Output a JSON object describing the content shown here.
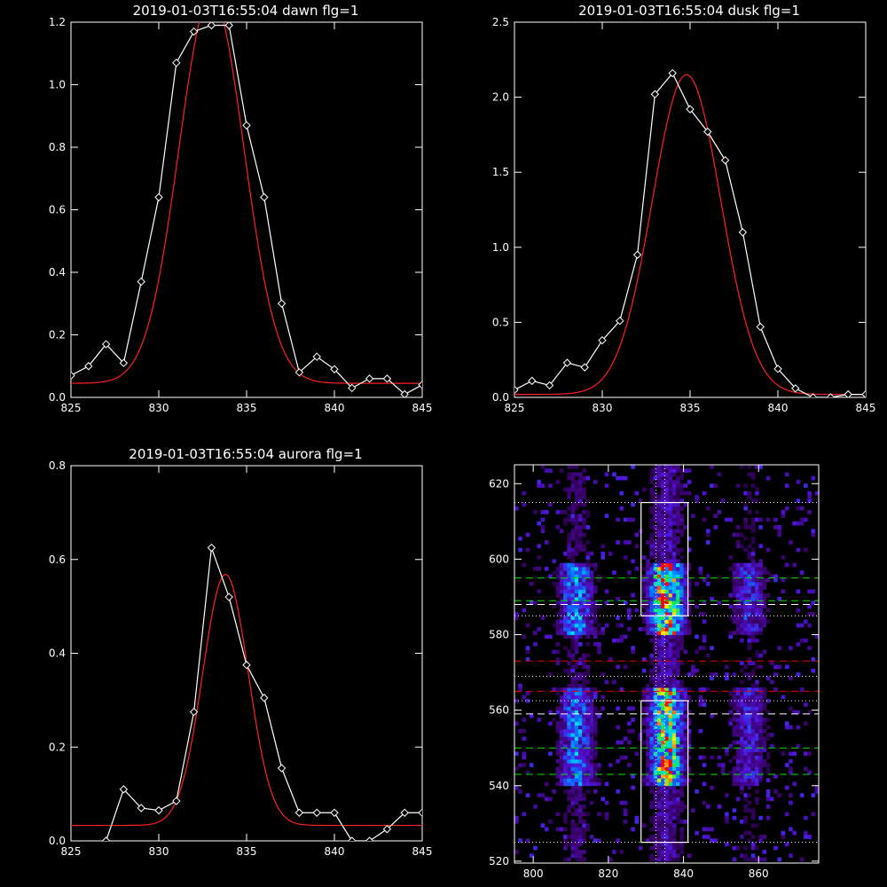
{
  "colors": {
    "background": "#000000",
    "axes": "#ffffff",
    "data_line": "#ffffff",
    "fit_line": "#ff2020",
    "guide_green": "#00e000",
    "guide_red": "#e00000",
    "guide_white": "#ffffff"
  },
  "chart_data": [
    {
      "id": "dawn",
      "type": "line",
      "title": "2019-01-03T16:55:04 dawn flg=1",
      "xlim": [
        825,
        845
      ],
      "ylim": [
        0,
        1.2
      ],
      "x_ticks": [
        "825",
        "830",
        "835",
        "840",
        "845"
      ],
      "y_ticks": [
        "0.0",
        "0.2",
        "0.4",
        "0.6",
        "0.8",
        "1.0",
        "1.2"
      ],
      "series": [
        {
          "marker": "diamond",
          "x": [
            825,
            826,
            827,
            828,
            829,
            830,
            831,
            832,
            833,
            834,
            835,
            836,
            837,
            838,
            839,
            840,
            841,
            842,
            843,
            844,
            845
          ],
          "y": [
            0.07,
            0.1,
            0.17,
            0.11,
            0.37,
            0.64,
            1.07,
            1.17,
            1.19,
            1.19,
            0.87,
            0.64,
            0.3,
            0.08,
            0.13,
            0.09,
            0.03,
            0.06,
            0.06,
            0.01,
            0.04
          ]
        },
        {
          "marker": "none",
          "fit": {
            "amplitude": 1.24,
            "center": 833.0,
            "sigma": 1.85,
            "offset": 0.045
          }
        }
      ]
    },
    {
      "id": "dusk",
      "type": "line",
      "title": "2019-01-03T16:55:04 dusk flg=1",
      "xlim": [
        825,
        845
      ],
      "ylim": [
        0,
        2.5
      ],
      "x_ticks": [
        "825",
        "830",
        "835",
        "840",
        "845"
      ],
      "y_ticks": [
        "0.0",
        "0.5",
        "1.0",
        "1.5",
        "2.0",
        "2.5"
      ],
      "series": [
        {
          "marker": "diamond",
          "x": [
            825,
            826,
            827,
            828,
            829,
            830,
            831,
            832,
            833,
            834,
            835,
            836,
            837,
            838,
            839,
            840,
            841,
            842,
            843,
            844,
            845
          ],
          "y": [
            0.05,
            0.11,
            0.08,
            0.23,
            0.2,
            0.38,
            0.51,
            0.95,
            2.02,
            2.16,
            1.92,
            1.77,
            1.58,
            1.1,
            0.47,
            0.19,
            0.06,
            0.0,
            0.0,
            0.02,
            0.02
          ]
        },
        {
          "marker": "none",
          "fit": {
            "amplitude": 2.13,
            "center": 834.8,
            "sigma": 1.95,
            "offset": 0.02
          }
        }
      ]
    },
    {
      "id": "aurora",
      "type": "line",
      "title": "2019-01-03T16:55:04 aurora flg=1",
      "xlim": [
        825,
        845
      ],
      "ylim": [
        0,
        0.8
      ],
      "x_ticks": [
        "825",
        "830",
        "835",
        "840",
        "845"
      ],
      "y_ticks": [
        "0.0",
        "0.2",
        "0.4",
        "0.6",
        "0.8"
      ],
      "series": [
        {
          "marker": "diamond",
          "x": [
            826,
            827,
            828,
            829,
            830,
            831,
            832,
            833,
            834,
            835,
            836,
            837,
            838,
            839,
            840,
            841,
            842,
            843,
            844,
            845
          ],
          "y": [
            -0.01,
            0.0,
            0.11,
            0.07,
            0.065,
            0.085,
            0.275,
            0.625,
            0.52,
            0.375,
            0.305,
            0.155,
            0.06,
            0.06,
            0.06,
            0.0,
            0.0,
            0.025,
            0.06,
            0.06
          ]
        },
        {
          "marker": "none",
          "fit": {
            "amplitude": 0.535,
            "center": 833.8,
            "sigma": 1.3,
            "offset": 0.033
          }
        }
      ]
    },
    {
      "id": "image",
      "type": "heatmap",
      "title": "",
      "xlim": [
        795,
        876
      ],
      "ylim": [
        519.5,
        625
      ],
      "x_ticks": [
        "800",
        "820",
        "840",
        "860"
      ],
      "y_ticks": [
        "520",
        "540",
        "560",
        "580",
        "600",
        "620"
      ],
      "bright_columns": [
        {
          "center": 811,
          "width": 3,
          "strength": 0.55
        },
        {
          "center": 835,
          "width": 3,
          "strength": 1.0
        },
        {
          "center": 857,
          "width": 3,
          "strength": 0.35
        }
      ],
      "bright_rows": [
        {
          "from": 540,
          "to": 565,
          "strength": 0.9
        },
        {
          "from": 580,
          "to": 598,
          "strength": 1.0
        }
      ],
      "boxes": [
        {
          "x": [
            828.7,
            841.2
          ],
          "y": [
            525,
            562.5
          ]
        },
        {
          "x": [
            828.7,
            841.2
          ],
          "y": [
            585,
            615
          ]
        }
      ],
      "vertical_lines": [
        {
          "x": 832.7,
          "style": "dotted",
          "color": "white"
        },
        {
          "x": 835.0,
          "style": "dotted",
          "color": "white"
        }
      ],
      "horizontal_lines": [
        {
          "y": 615,
          "style": "dotted",
          "color": "white"
        },
        {
          "y": 595,
          "style": "dashed",
          "color": "green"
        },
        {
          "y": 589,
          "style": "dashed",
          "color": "green"
        },
        {
          "y": 588,
          "style": "dashed",
          "color": "white"
        },
        {
          "y": 585,
          "style": "dotted",
          "color": "white"
        },
        {
          "y": 573,
          "style": "dashed",
          "color": "red"
        },
        {
          "y": 569,
          "style": "dotted",
          "color": "white"
        },
        {
          "y": 565,
          "style": "dashed",
          "color": "red"
        },
        {
          "y": 562.5,
          "style": "dotted",
          "color": "white"
        },
        {
          "y": 559,
          "style": "dashed",
          "color": "white"
        },
        {
          "y": 550,
          "style": "dashed",
          "color": "green"
        },
        {
          "y": 543,
          "style": "dashed",
          "color": "green"
        },
        {
          "y": 525,
          "style": "dotted",
          "color": "white"
        }
      ]
    }
  ]
}
